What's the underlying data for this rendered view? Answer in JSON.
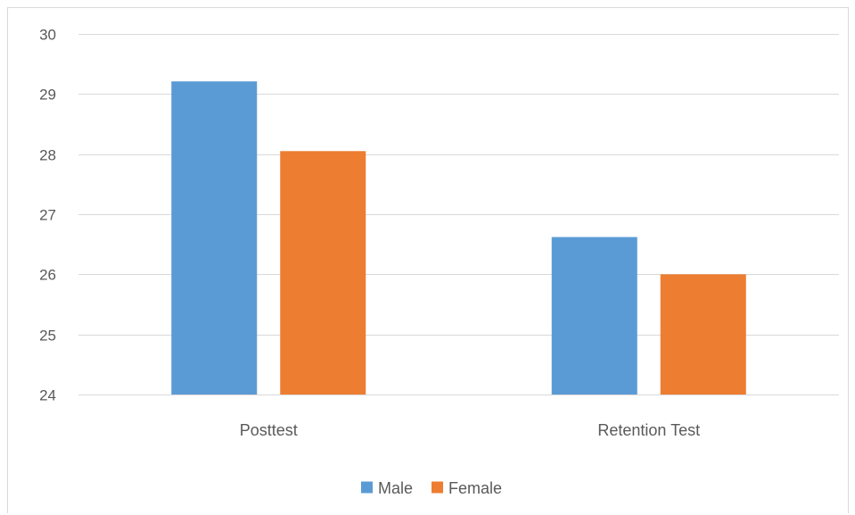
{
  "chart_data": {
    "type": "bar",
    "title": "",
    "xlabel": "",
    "ylabel": "",
    "categories": [
      "Posttest",
      "Retention Test"
    ],
    "series": [
      {
        "name": "Male",
        "color": "#5b9bd5",
        "values": [
          29.21,
          26.62
        ]
      },
      {
        "name": "Female",
        "color": "#ed7d31",
        "values": [
          28.05,
          26.0
        ]
      }
    ],
    "ylim": [
      24,
      30
    ],
    "yticks": [
      "24",
      "25",
      "26",
      "27",
      "28",
      "29",
      "30"
    ],
    "grid": true,
    "legend_position": "bottom"
  }
}
